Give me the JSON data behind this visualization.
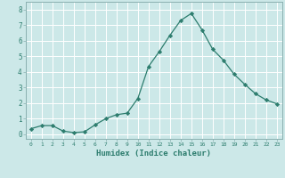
{
  "x": [
    0,
    1,
    2,
    3,
    4,
    5,
    6,
    7,
    8,
    9,
    10,
    11,
    12,
    13,
    14,
    15,
    16,
    17,
    18,
    19,
    20,
    21,
    22,
    23
  ],
  "y": [
    0.35,
    0.55,
    0.55,
    0.2,
    0.1,
    0.15,
    0.6,
    1.0,
    1.25,
    1.35,
    2.3,
    4.35,
    5.3,
    6.35,
    7.3,
    7.75,
    6.7,
    5.45,
    4.75,
    3.85,
    3.2,
    2.6,
    2.2,
    1.95
  ],
  "line_color": "#2d7d6e",
  "marker": "D",
  "marker_size": 2.2,
  "xlabel": "Humidex (Indice chaleur)",
  "xlim": [
    -0.5,
    23.5
  ],
  "ylim": [
    -0.3,
    8.5
  ],
  "yticks": [
    0,
    1,
    2,
    3,
    4,
    5,
    6,
    7,
    8
  ],
  "xticks": [
    0,
    1,
    2,
    3,
    4,
    5,
    6,
    7,
    8,
    9,
    10,
    11,
    12,
    13,
    14,
    15,
    16,
    17,
    18,
    19,
    20,
    21,
    22,
    23
  ],
  "background_color": "#cce8e8",
  "grid_color": "#ffffff",
  "tick_color": "#2d7d6e",
  "label_color": "#2d7d6e",
  "spine_color": "#8ab0b0"
}
